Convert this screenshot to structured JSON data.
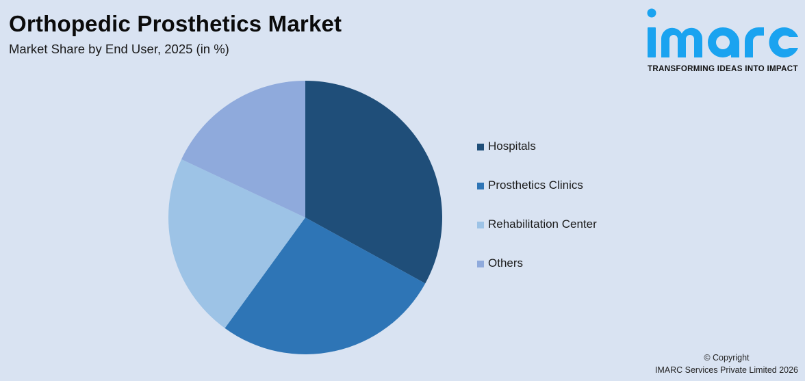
{
  "header": {
    "title": "Orthopedic Prosthetics Market",
    "subtitle": "Market Share by End User, 2025 (in %)"
  },
  "logo": {
    "wordmark": "imarc",
    "tagline": "TRANSFORMING IDEAS INTO IMPACT",
    "color": "#1aa3f0"
  },
  "legend": {
    "items": [
      {
        "label": "Hospitals",
        "color": "#1f4e79"
      },
      {
        "label": "Prosthetics Clinics",
        "color": "#2e75b6"
      },
      {
        "label": "Rehabilitation Center",
        "color": "#9dc3e6"
      },
      {
        "label": "Others",
        "color": "#8faadc"
      }
    ]
  },
  "footer": {
    "copyright_line1": "© Copyright",
    "copyright_line2": "IMARC Services Private Limited 2026"
  },
  "chart_data": {
    "type": "pie",
    "title": "Orthopedic Prosthetics Market",
    "subtitle": "Market Share by End User, 2025 (in %)",
    "categories": [
      "Hospitals",
      "Prosthetics Clinics",
      "Rehabilitation Center",
      "Others"
    ],
    "values": [
      33,
      27,
      22,
      18
    ],
    "colors": [
      "#1f4e79",
      "#2e75b6",
      "#9dc3e6",
      "#8faadc"
    ],
    "start_angle_deg": 0,
    "direction": "clockwise",
    "legend_position": "right",
    "data_labels": false
  }
}
